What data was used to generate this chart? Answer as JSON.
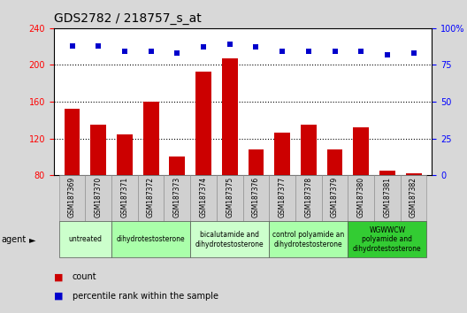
{
  "title": "GDS2782 / 218757_s_at",
  "samples": [
    "GSM187369",
    "GSM187370",
    "GSM187371",
    "GSM187372",
    "GSM187373",
    "GSM187374",
    "GSM187375",
    "GSM187376",
    "GSM187377",
    "GSM187378",
    "GSM187379",
    "GSM187380",
    "GSM187381",
    "GSM187382"
  ],
  "bar_values": [
    152,
    135,
    124,
    160,
    100,
    193,
    207,
    108,
    126,
    135,
    108,
    132,
    85,
    82
  ],
  "dot_values": [
    88,
    88,
    84,
    84,
    83,
    87,
    89,
    87,
    84,
    84,
    84,
    84,
    82,
    83
  ],
  "bar_color": "#cc0000",
  "dot_color": "#0000cc",
  "ylim_left": [
    80,
    240
  ],
  "ylim_right": [
    0,
    100
  ],
  "yticks_left": [
    80,
    120,
    160,
    200,
    240
  ],
  "yticks_right": [
    0,
    25,
    50,
    75,
    100
  ],
  "ytick_labels_right": [
    "0",
    "25",
    "50",
    "75",
    "100%"
  ],
  "grid_values": [
    120,
    160,
    200
  ],
  "groups": [
    {
      "label": "untreated",
      "start": 0,
      "end": 1,
      "color": "#ccffcc"
    },
    {
      "label": "dihydrotestosterone",
      "start": 2,
      "end": 4,
      "color": "#aaffaa"
    },
    {
      "label": "bicalutamide and\ndihydrotestosterone",
      "start": 5,
      "end": 7,
      "color": "#ccffcc"
    },
    {
      "label": "control polyamide an\ndihydrotestosterone",
      "start": 8,
      "end": 10,
      "color": "#aaffaa"
    },
    {
      "label": "WGWWCW\npolyamide and\ndihydrotestosterone",
      "start": 11,
      "end": 13,
      "color": "#33cc33"
    }
  ],
  "sample_box_color": "#d0d0d0",
  "background_color": "#d8d8d8",
  "plot_bg": "#ffffff",
  "agent_label": "agent",
  "legend_count_label": "count",
  "legend_pct_label": "percentile rank within the sample",
  "title_fontsize": 10,
  "tick_fontsize": 7,
  "label_fontsize": 6
}
